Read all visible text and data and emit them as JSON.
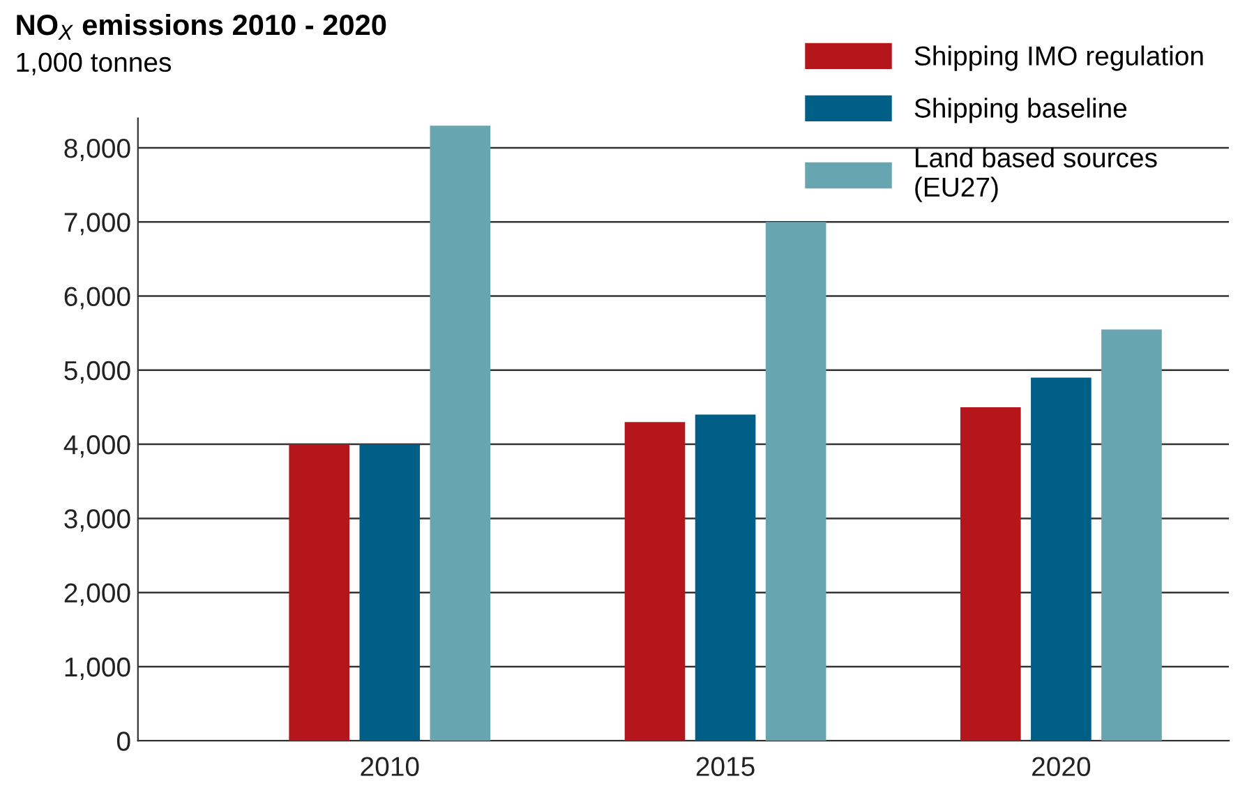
{
  "chart_data": {
    "type": "bar",
    "title": "NO$_{X}$ emissions 2010 - 2020",
    "subtitle": "1,000 tonnes",
    "categories": [
      "2010",
      "2015",
      "2020"
    ],
    "series": [
      {
        "name": "Shipping IMO regulation",
        "color": "#b5161b",
        "values": [
          4000,
          4300,
          4500
        ]
      },
      {
        "name": "Shipping baseline",
        "color": "#005f86",
        "values": [
          4000,
          4400,
          4900
        ]
      },
      {
        "name": "Land based sources\n(EU27)",
        "color": "#67a5b0",
        "values": [
          8300,
          7000,
          5550
        ]
      }
    ],
    "ylim": [
      0,
      8400
    ],
    "yticks": [
      0,
      {
        "value": 1000,
        "label": "1,000"
      },
      {
        "value": 2000,
        "label": "2,000"
      },
      {
        "value": 3000,
        "label": "3,000"
      },
      {
        "value": 4000,
        "label": "4,000"
      },
      {
        "value": 5000,
        "label": "5,000"
      },
      {
        "value": 6000,
        "label": "6,000"
      },
      {
        "value": 7000,
        "label": "7,000"
      },
      {
        "value": 8000,
        "label": "8,000"
      }
    ],
    "grid": "y",
    "legend": "top right"
  }
}
